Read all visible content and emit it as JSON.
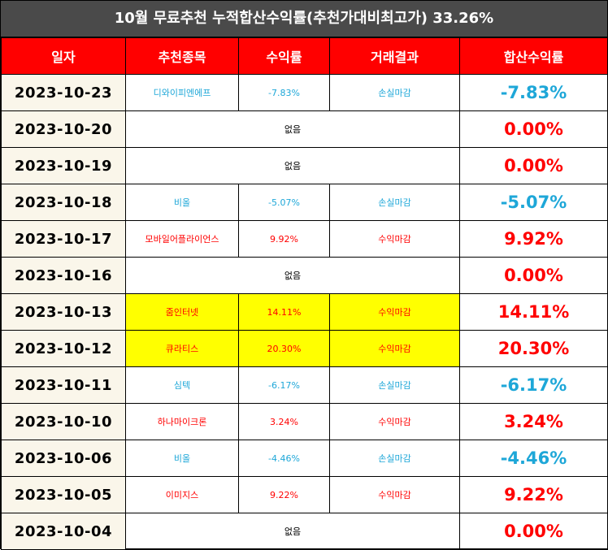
{
  "title": "10월 무료추천 누적합산수익률(추천가대비최고가) 33.26%",
  "colors": {
    "header_bg": "#ff0000",
    "title_bg": "#4a4a4a",
    "positive": "#ff0000",
    "negative": "#1ea7d8",
    "highlight": "#ffff00",
    "date_bg": "#faf6ea"
  },
  "headers": [
    "일자",
    "추천종목",
    "수익률",
    "거래결과",
    "합산수익률"
  ],
  "rows": [
    {
      "date": "2023-10-23",
      "stock": "디와이피엔에프",
      "rate": "-7.83%",
      "result": "손실마감",
      "total": "-7.83%",
      "sign": "neg",
      "highlight": false,
      "empty": false
    },
    {
      "date": "2023-10-20",
      "stock": "없음",
      "total": "0.00%",
      "sign": "pos",
      "highlight": false,
      "empty": true
    },
    {
      "date": "2023-10-19",
      "stock": "없음",
      "total": "0.00%",
      "sign": "pos",
      "highlight": false,
      "empty": true
    },
    {
      "date": "2023-10-18",
      "stock": "비올",
      "rate": "-5.07%",
      "result": "손실마감",
      "total": "-5.07%",
      "sign": "neg",
      "highlight": false,
      "empty": false
    },
    {
      "date": "2023-10-17",
      "stock": "모바일어플라이언스",
      "rate": "9.92%",
      "result": "수익마감",
      "total": "9.92%",
      "sign": "pos",
      "highlight": false,
      "empty": false
    },
    {
      "date": "2023-10-16",
      "stock": "없음",
      "total": "0.00%",
      "sign": "pos",
      "highlight": false,
      "empty": true
    },
    {
      "date": "2023-10-13",
      "stock": "줌인터넷",
      "rate": "14.11%",
      "result": "수익마감",
      "total": "14.11%",
      "sign": "pos",
      "highlight": true,
      "empty": false
    },
    {
      "date": "2023-10-12",
      "stock": "큐라티스",
      "rate": "20.30%",
      "result": "수익마감",
      "total": "20.30%",
      "sign": "pos",
      "highlight": true,
      "empty": false
    },
    {
      "date": "2023-10-11",
      "stock": "심텍",
      "rate": "-6.17%",
      "result": "손실마감",
      "total": "-6.17%",
      "sign": "neg",
      "highlight": false,
      "empty": false
    },
    {
      "date": "2023-10-10",
      "stock": "하나마이크론",
      "rate": "3.24%",
      "result": "수익마감",
      "total": "3.24%",
      "sign": "pos",
      "highlight": false,
      "empty": false
    },
    {
      "date": "2023-10-06",
      "stock": "비올",
      "rate": "-4.46%",
      "result": "손실마감",
      "total": "-4.46%",
      "sign": "neg",
      "highlight": false,
      "empty": false
    },
    {
      "date": "2023-10-05",
      "stock": "이미지스",
      "rate": "9.22%",
      "result": "수익마감",
      "total": "9.22%",
      "sign": "pos",
      "highlight": false,
      "empty": false
    },
    {
      "date": "2023-10-04",
      "stock": "없음",
      "total": "0.00%",
      "sign": "pos",
      "highlight": false,
      "empty": true
    }
  ]
}
